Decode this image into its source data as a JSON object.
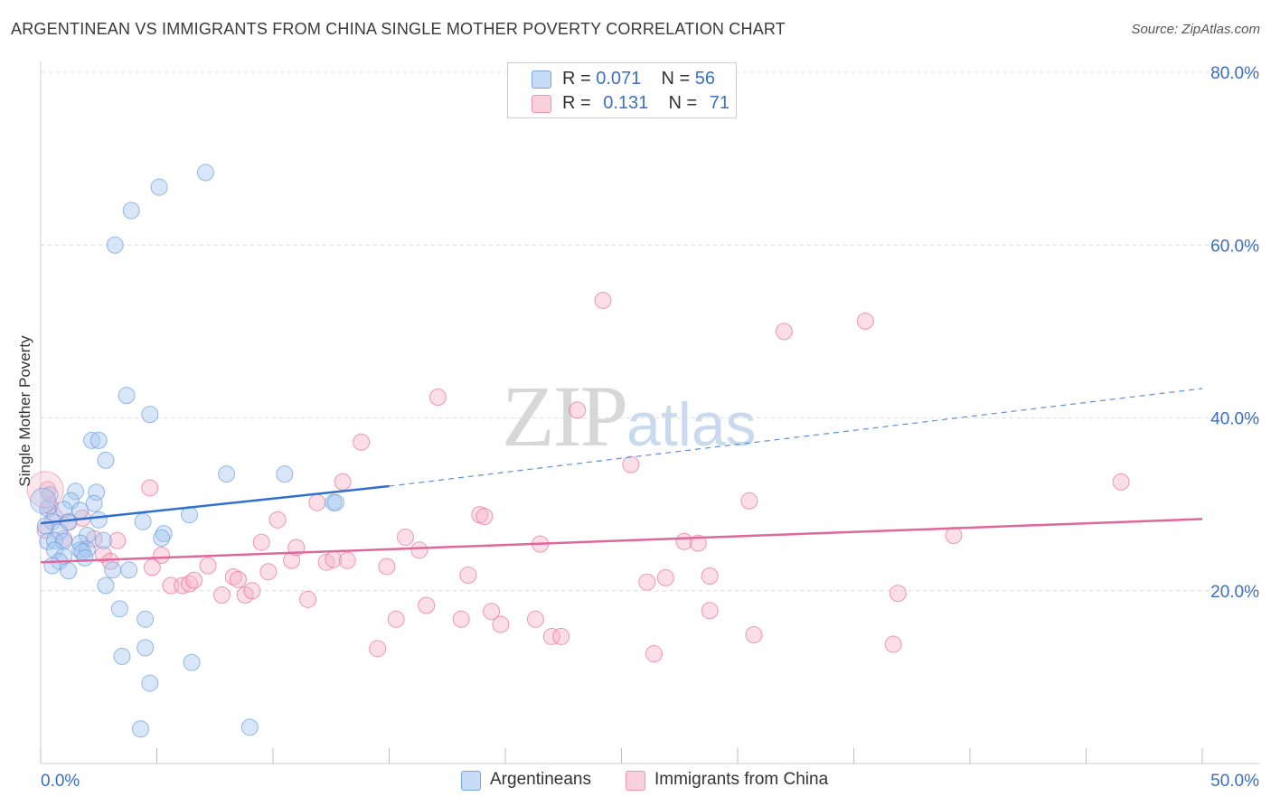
{
  "title": "ARGENTINEAN VS IMMIGRANTS FROM CHINA SINGLE MOTHER POVERTY CORRELATION CHART",
  "source": "Source: ZipAtlas.com",
  "watermark": {
    "zip": "ZIP",
    "atlas": "atlas"
  },
  "legend": {
    "rows": [
      {
        "r_label": "R = ",
        "r_value": "0.071",
        "n_label": "N = ",
        "n_value": "56",
        "color": "#a9c8f0"
      },
      {
        "r_label": "R = ",
        "r_value": "0.131",
        "n_label": "N = ",
        "n_value": "71",
        "color": "#f6b6cb"
      }
    ]
  },
  "bottom_legend": [
    {
      "label": "Argentineans",
      "color": "#a9c8f0"
    },
    {
      "label": "Immigrants from China",
      "color": "#f6b6cb"
    }
  ],
  "chart_data": {
    "type": "scatter",
    "title": "ARGENTINEAN VS IMMIGRANTS FROM CHINA SINGLE MOTHER POVERTY CORRELATION CHART",
    "xlabel": "",
    "ylabel": "Single Mother Poverty",
    "xlim": [
      0,
      50
    ],
    "ylim": [
      0,
      80
    ],
    "x_ticks": [
      "0.0%",
      "50.0%"
    ],
    "y_ticks": [
      "20.0%",
      "40.0%",
      "60.0%",
      "80.0%"
    ],
    "y_tick_values": [
      20,
      40,
      60,
      80
    ],
    "grid": true,
    "legend_position": "top-center",
    "series": [
      {
        "name": "Argentineans",
        "color": "#6a9ee0",
        "fill": "#a9c8f0",
        "trend": {
          "x0": 0,
          "y0": 27.8,
          "x1": 15,
          "y1": 32.1,
          "x_dash_end": 50,
          "y_dash_end": 43.4
        },
        "points": [
          [
            7.1,
            68.4
          ],
          [
            5.1,
            66.7
          ],
          [
            3.9,
            64.0
          ],
          [
            3.2,
            60.0
          ],
          [
            3.7,
            42.6
          ],
          [
            4.7,
            40.4
          ],
          [
            2.2,
            37.4
          ],
          [
            2.5,
            37.4
          ],
          [
            2.8,
            35.1
          ],
          [
            8.0,
            33.5
          ],
          [
            10.5,
            33.5
          ],
          [
            12.6,
            30.2
          ],
          [
            12.7,
            30.2
          ],
          [
            0.4,
            31.1
          ],
          [
            1.5,
            31.5
          ],
          [
            2.4,
            31.4
          ],
          [
            1.3,
            30.4
          ],
          [
            2.3,
            30.1
          ],
          [
            1.0,
            29.4
          ],
          [
            1.7,
            29.3
          ],
          [
            0.3,
            29.5
          ],
          [
            0.5,
            28.0
          ],
          [
            1.2,
            27.9
          ],
          [
            2.5,
            28.2
          ],
          [
            4.4,
            28.0
          ],
          [
            6.4,
            28.8
          ],
          [
            0.8,
            26.8
          ],
          [
            0.2,
            27.5
          ],
          [
            0.3,
            25.7
          ],
          [
            0.6,
            25.8
          ],
          [
            1.0,
            25.7
          ],
          [
            2.0,
            26.4
          ],
          [
            1.7,
            25.5
          ],
          [
            2.7,
            25.8
          ],
          [
            5.3,
            26.6
          ],
          [
            5.2,
            26.1
          ],
          [
            0.6,
            24.7
          ],
          [
            1.7,
            24.7
          ],
          [
            2.0,
            24.8
          ],
          [
            1.8,
            24.5
          ],
          [
            1.0,
            24.0
          ],
          [
            0.8,
            23.4
          ],
          [
            1.9,
            23.8
          ],
          [
            0.5,
            22.9
          ],
          [
            1.2,
            22.3
          ],
          [
            3.1,
            22.4
          ],
          [
            3.8,
            22.4
          ],
          [
            2.8,
            20.6
          ],
          [
            3.4,
            17.9
          ],
          [
            4.5,
            16.7
          ],
          [
            4.5,
            13.4
          ],
          [
            3.5,
            12.4
          ],
          [
            6.5,
            11.7
          ],
          [
            4.7,
            9.3
          ],
          [
            4.3,
            4.0
          ],
          [
            9.0,
            4.2
          ]
        ]
      },
      {
        "name": "Immigrants from China",
        "color": "#e96f9a",
        "fill": "#f6b6cb",
        "trend": {
          "x0": 0,
          "y0": 23.3,
          "x1": 50,
          "y1": 28.3
        },
        "points": [
          [
            0.3,
            31.7
          ],
          [
            0.2,
            27.0
          ],
          [
            1.0,
            26.0
          ],
          [
            1.2,
            28.0
          ],
          [
            1.8,
            28.4
          ],
          [
            2.3,
            26.0
          ],
          [
            2.7,
            24.2
          ],
          [
            3.0,
            23.4
          ],
          [
            3.3,
            25.8
          ],
          [
            4.7,
            31.9
          ],
          [
            5.2,
            24.1
          ],
          [
            4.8,
            22.7
          ],
          [
            5.6,
            20.6
          ],
          [
            6.1,
            20.6
          ],
          [
            6.4,
            20.8
          ],
          [
            6.6,
            21.2
          ],
          [
            7.2,
            22.9
          ],
          [
            7.8,
            19.5
          ],
          [
            8.3,
            21.6
          ],
          [
            8.5,
            21.3
          ],
          [
            8.8,
            19.5
          ],
          [
            9.1,
            20.0
          ],
          [
            9.5,
            25.6
          ],
          [
            9.8,
            22.2
          ],
          [
            10.2,
            28.2
          ],
          [
            10.8,
            23.5
          ],
          [
            11.0,
            25.0
          ],
          [
            11.5,
            19.0
          ],
          [
            11.9,
            30.2
          ],
          [
            12.3,
            23.3
          ],
          [
            12.6,
            23.6
          ],
          [
            13.0,
            32.6
          ],
          [
            13.2,
            23.5
          ],
          [
            13.8,
            37.2
          ],
          [
            14.5,
            13.3
          ],
          [
            14.9,
            22.8
          ],
          [
            15.3,
            16.7
          ],
          [
            15.7,
            26.2
          ],
          [
            16.3,
            24.7
          ],
          [
            16.6,
            18.3
          ],
          [
            17.1,
            42.4
          ],
          [
            18.1,
            16.7
          ],
          [
            18.4,
            21.8
          ],
          [
            18.9,
            28.8
          ],
          [
            19.1,
            28.6
          ],
          [
            19.4,
            17.6
          ],
          [
            19.8,
            16.1
          ],
          [
            21.3,
            16.7
          ],
          [
            21.5,
            25.4
          ],
          [
            22.0,
            14.7
          ],
          [
            22.4,
            14.7
          ],
          [
            23.1,
            40.9
          ],
          [
            24.2,
            53.6
          ],
          [
            25.4,
            34.6
          ],
          [
            26.1,
            21.0
          ],
          [
            26.4,
            12.7
          ],
          [
            26.9,
            21.5
          ],
          [
            27.7,
            25.7
          ],
          [
            28.3,
            25.5
          ],
          [
            28.8,
            21.7
          ],
          [
            28.8,
            17.7
          ],
          [
            30.5,
            30.4
          ],
          [
            30.7,
            14.9
          ],
          [
            32.0,
            50.0
          ],
          [
            35.5,
            51.2
          ],
          [
            36.7,
            13.8
          ],
          [
            36.9,
            19.7
          ],
          [
            39.3,
            26.4
          ],
          [
            46.5,
            32.6
          ],
          [
            0.4,
            29.8
          ],
          [
            0.6,
            28.6
          ]
        ]
      }
    ]
  }
}
